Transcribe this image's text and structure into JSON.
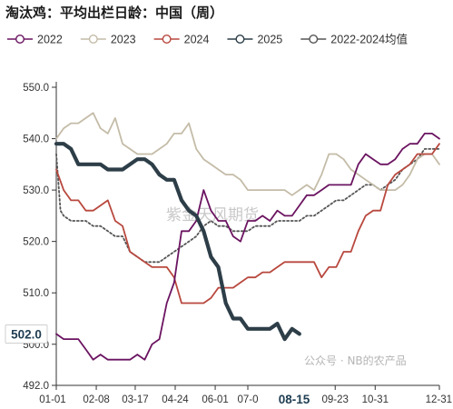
{
  "title": "淘汰鸡：平均出栏日龄：中国（周）",
  "watermark": "紫金天风期货",
  "credit": "公众号 · NB的农产品",
  "colors": {
    "s2022": "#6b1461",
    "s2023": "#c4bca8",
    "s2024": "#b8483e",
    "s2025": "#2d3e48",
    "avg": "#555555",
    "axis": "#333333",
    "highlight": "#1f3d52"
  },
  "chart_data": {
    "type": "line",
    "title": "淘汰鸡：平均出栏日龄：中国（周）",
    "xlabel": "",
    "ylabel": "",
    "ylim": [
      492,
      550
    ],
    "x_domain": [
      "01-01",
      "12-31"
    ],
    "y_ticks": [
      "492.0",
      "500.0",
      "510.0",
      "520.0",
      "530.0",
      "540.0",
      "550.0"
    ],
    "x_ticks": [
      "01-01",
      "02-08",
      "03-17",
      "04-24",
      "06-01",
      "07-0",
      "09-23",
      "10-31",
      "12-31"
    ],
    "x_tick_days": [
      0,
      38,
      75,
      113,
      151,
      182,
      265,
      303,
      364
    ],
    "highlight_x_label": "08-15",
    "highlight_x_day": 226,
    "highlight_y_label": "502.0",
    "highlight_y_value": 502.0,
    "grid": false,
    "legend_position": "top",
    "series": [
      {
        "name": "2022",
        "color_key": "s2022",
        "marker": true,
        "values": [
          [
            0,
            502
          ],
          [
            7,
            501
          ],
          [
            14,
            501
          ],
          [
            21,
            501
          ],
          [
            28,
            499
          ],
          [
            35,
            497
          ],
          [
            42,
            498
          ],
          [
            49,
            497
          ],
          [
            56,
            497
          ],
          [
            63,
            497
          ],
          [
            70,
            497
          ],
          [
            77,
            498
          ],
          [
            84,
            497
          ],
          [
            91,
            500
          ],
          [
            98,
            501
          ],
          [
            105,
            508
          ],
          [
            112,
            512
          ],
          [
            119,
            522
          ],
          [
            126,
            522
          ],
          [
            133,
            524
          ],
          [
            140,
            530
          ],
          [
            147,
            526
          ],
          [
            154,
            524
          ],
          [
            161,
            524
          ],
          [
            168,
            521
          ],
          [
            175,
            520
          ],
          [
            182,
            524
          ],
          [
            189,
            524
          ],
          [
            196,
            525
          ],
          [
            203,
            524
          ],
          [
            210,
            526
          ],
          [
            217,
            525
          ],
          [
            224,
            525
          ],
          [
            231,
            527
          ],
          [
            238,
            529
          ],
          [
            245,
            529
          ],
          [
            252,
            530
          ],
          [
            259,
            531
          ],
          [
            266,
            531
          ],
          [
            273,
            531
          ],
          [
            280,
            531
          ],
          [
            287,
            535
          ],
          [
            294,
            537
          ],
          [
            301,
            536
          ],
          [
            308,
            535
          ],
          [
            315,
            535
          ],
          [
            322,
            536
          ],
          [
            329,
            538
          ],
          [
            336,
            539
          ],
          [
            343,
            539
          ],
          [
            350,
            541
          ],
          [
            357,
            541
          ],
          [
            364,
            540
          ]
        ]
      },
      {
        "name": "2023",
        "color_key": "s2023",
        "marker": true,
        "values": [
          [
            0,
            540
          ],
          [
            7,
            542
          ],
          [
            14,
            543
          ],
          [
            21,
            543
          ],
          [
            28,
            544
          ],
          [
            35,
            545
          ],
          [
            42,
            542
          ],
          [
            49,
            541
          ],
          [
            56,
            544
          ],
          [
            63,
            539
          ],
          [
            70,
            538
          ],
          [
            77,
            537
          ],
          [
            84,
            537
          ],
          [
            91,
            537
          ],
          [
            98,
            538
          ],
          [
            105,
            539
          ],
          [
            112,
            541
          ],
          [
            119,
            541
          ],
          [
            126,
            543
          ],
          [
            133,
            538
          ],
          [
            140,
            536
          ],
          [
            147,
            535
          ],
          [
            154,
            534
          ],
          [
            161,
            533
          ],
          [
            168,
            533
          ],
          [
            175,
            532
          ],
          [
            182,
            530
          ],
          [
            189,
            530
          ],
          [
            196,
            530
          ],
          [
            203,
            530
          ],
          [
            210,
            530
          ],
          [
            217,
            530
          ],
          [
            224,
            529
          ],
          [
            231,
            530
          ],
          [
            238,
            531
          ],
          [
            245,
            530
          ],
          [
            252,
            533
          ],
          [
            259,
            537
          ],
          [
            266,
            537
          ],
          [
            273,
            536
          ],
          [
            280,
            534
          ],
          [
            287,
            533
          ],
          [
            294,
            532
          ],
          [
            301,
            531
          ],
          [
            308,
            530
          ],
          [
            315,
            530
          ],
          [
            322,
            530
          ],
          [
            329,
            531
          ],
          [
            336,
            533
          ],
          [
            343,
            536
          ],
          [
            350,
            537
          ],
          [
            357,
            537
          ],
          [
            364,
            535
          ]
        ]
      },
      {
        "name": "2024",
        "color_key": "s2024",
        "marker": true,
        "values": [
          [
            0,
            534
          ],
          [
            7,
            530
          ],
          [
            14,
            528
          ],
          [
            21,
            528
          ],
          [
            28,
            526
          ],
          [
            35,
            526
          ],
          [
            42,
            527
          ],
          [
            49,
            528
          ],
          [
            56,
            524
          ],
          [
            63,
            523
          ],
          [
            70,
            518
          ],
          [
            77,
            517
          ],
          [
            84,
            516
          ],
          [
            91,
            515
          ],
          [
            98,
            515
          ],
          [
            105,
            515
          ],
          [
            112,
            513
          ],
          [
            119,
            508
          ],
          [
            126,
            508
          ],
          [
            133,
            508
          ],
          [
            140,
            508
          ],
          [
            147,
            509
          ],
          [
            154,
            511
          ],
          [
            161,
            511
          ],
          [
            168,
            511
          ],
          [
            175,
            512
          ],
          [
            182,
            513
          ],
          [
            189,
            513
          ],
          [
            196,
            514
          ],
          [
            203,
            514
          ],
          [
            210,
            515
          ],
          [
            217,
            516
          ],
          [
            224,
            516
          ],
          [
            231,
            516
          ],
          [
            238,
            516
          ],
          [
            245,
            516
          ],
          [
            252,
            513
          ],
          [
            259,
            515
          ],
          [
            266,
            515
          ],
          [
            273,
            518
          ],
          [
            280,
            518
          ],
          [
            287,
            522
          ],
          [
            294,
            525
          ],
          [
            301,
            526
          ],
          [
            308,
            526
          ],
          [
            315,
            531
          ],
          [
            322,
            533
          ],
          [
            329,
            534
          ],
          [
            336,
            535
          ],
          [
            343,
            537
          ],
          [
            350,
            537
          ],
          [
            357,
            537
          ],
          [
            364,
            539
          ]
        ]
      },
      {
        "name": "2025",
        "color_key": "s2025",
        "marker": true,
        "values": [
          [
            0,
            539
          ],
          [
            7,
            539
          ],
          [
            14,
            538
          ],
          [
            21,
            535
          ],
          [
            28,
            535
          ],
          [
            35,
            535
          ],
          [
            42,
            535
          ],
          [
            49,
            534
          ],
          [
            56,
            534
          ],
          [
            63,
            534
          ],
          [
            70,
            535
          ],
          [
            77,
            536
          ],
          [
            84,
            536
          ],
          [
            91,
            535
          ],
          [
            98,
            533
          ],
          [
            105,
            532
          ],
          [
            112,
            532
          ],
          [
            119,
            528
          ],
          [
            126,
            526
          ],
          [
            133,
            525
          ],
          [
            140,
            522
          ],
          [
            147,
            517
          ],
          [
            154,
            515
          ],
          [
            161,
            508
          ],
          [
            168,
            505
          ],
          [
            175,
            505
          ],
          [
            182,
            503
          ],
          [
            189,
            503
          ],
          [
            196,
            503
          ],
          [
            203,
            503
          ],
          [
            210,
            504
          ],
          [
            217,
            501
          ],
          [
            224,
            503
          ],
          [
            231,
            502
          ]
        ]
      },
      {
        "name": "2022-2024均值",
        "color_key": "avg",
        "marker": true,
        "dashed": true,
        "values": [
          [
            0,
            537
          ],
          [
            4,
            526
          ],
          [
            7,
            525
          ],
          [
            14,
            524
          ],
          [
            21,
            524
          ],
          [
            28,
            524
          ],
          [
            35,
            523
          ],
          [
            42,
            523
          ],
          [
            49,
            522
          ],
          [
            56,
            521
          ],
          [
            63,
            521
          ],
          [
            70,
            518
          ],
          [
            77,
            517
          ],
          [
            84,
            516
          ],
          [
            91,
            516
          ],
          [
            98,
            516
          ],
          [
            105,
            517
          ],
          [
            112,
            518
          ],
          [
            119,
            519
          ],
          [
            126,
            520
          ],
          [
            133,
            521
          ],
          [
            140,
            523
          ],
          [
            147,
            524
          ],
          [
            154,
            523
          ],
          [
            161,
            523
          ],
          [
            168,
            522
          ],
          [
            175,
            522
          ],
          [
            182,
            522
          ],
          [
            189,
            523
          ],
          [
            196,
            523
          ],
          [
            203,
            523
          ],
          [
            210,
            524
          ],
          [
            217,
            524
          ],
          [
            224,
            524
          ],
          [
            231,
            524
          ],
          [
            238,
            525
          ],
          [
            245,
            525
          ],
          [
            252,
            526
          ],
          [
            259,
            527
          ],
          [
            266,
            528
          ],
          [
            273,
            528
          ],
          [
            280,
            529
          ],
          [
            287,
            530
          ],
          [
            294,
            531
          ],
          [
            301,
            531
          ],
          [
            308,
            530
          ],
          [
            315,
            531
          ],
          [
            322,
            532
          ],
          [
            329,
            534
          ],
          [
            336,
            535
          ],
          [
            343,
            536
          ],
          [
            350,
            538
          ],
          [
            357,
            538
          ],
          [
            364,
            538
          ]
        ]
      }
    ]
  }
}
